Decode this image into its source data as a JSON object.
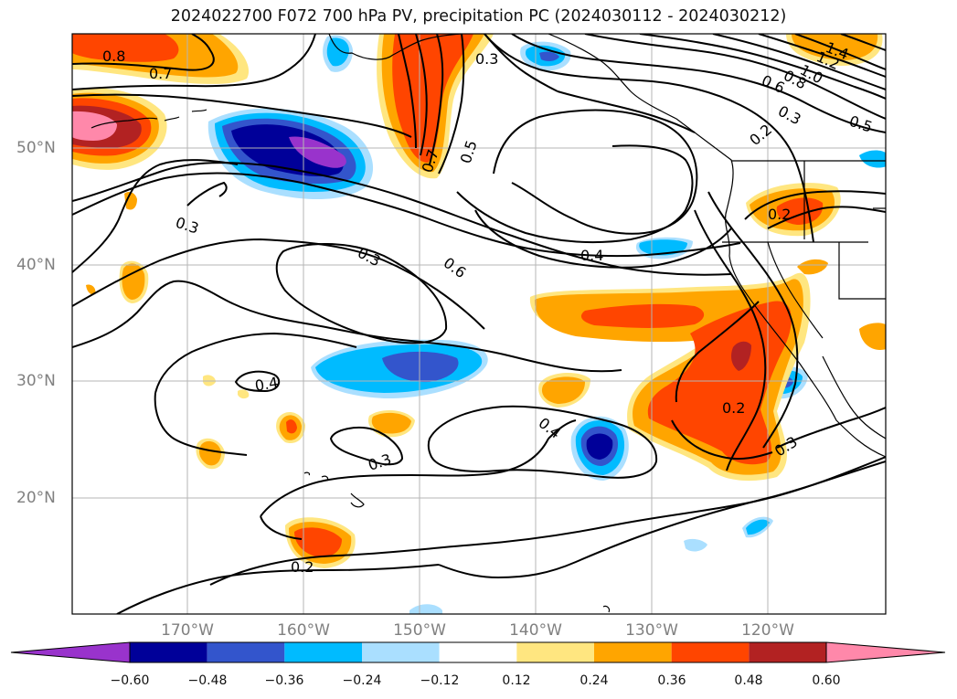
{
  "title": "2024022700 F072 700 hPa PV, precipitation PC (2024030112 - 2024030212)",
  "lat_labels": [
    "50°N",
    "40°N",
    "30°N",
    "20°N"
  ],
  "lon_labels": [
    "170°W",
    "160°W",
    "150°W",
    "140°W",
    "130°W",
    "120°W"
  ],
  "contour_labels": [
    "0.8",
    "0.7",
    "0.3",
    "0.3",
    "0.3",
    "0.6",
    "0.4",
    "0.7",
    "0.5",
    "0.5",
    "0.6",
    "0.8",
    "1.0",
    "1.2",
    "1.4",
    "0.3",
    "0.2",
    "0.2",
    "0.4",
    "0.3",
    "0.4",
    "0.2",
    "0.3",
    "0.2"
  ],
  "colorbar": {
    "ticks": [
      "−0.60",
      "−0.48",
      "−0.36",
      "−0.24",
      "−0.12",
      "0.12",
      "0.24",
      "0.36",
      "0.48",
      "0.60"
    ],
    "colors": [
      "#9933cc",
      "#000099",
      "#3355cc",
      "#00bbff",
      "#aadfff",
      "#ffffff",
      "#ffe680",
      "#ffa500",
      "#ff4500",
      "#b22222",
      "#ff88aa"
    ]
  },
  "palette": {
    "purple": "#9933cc",
    "navy": "#000099",
    "blue": "#3355cc",
    "cyan": "#00bbff",
    "light_blue": "#aadfff",
    "yellow": "#ffe680",
    "orange": "#ffa500",
    "red_orange": "#ff4500",
    "dark_red": "#b22222",
    "pink": "#ff88aa"
  }
}
